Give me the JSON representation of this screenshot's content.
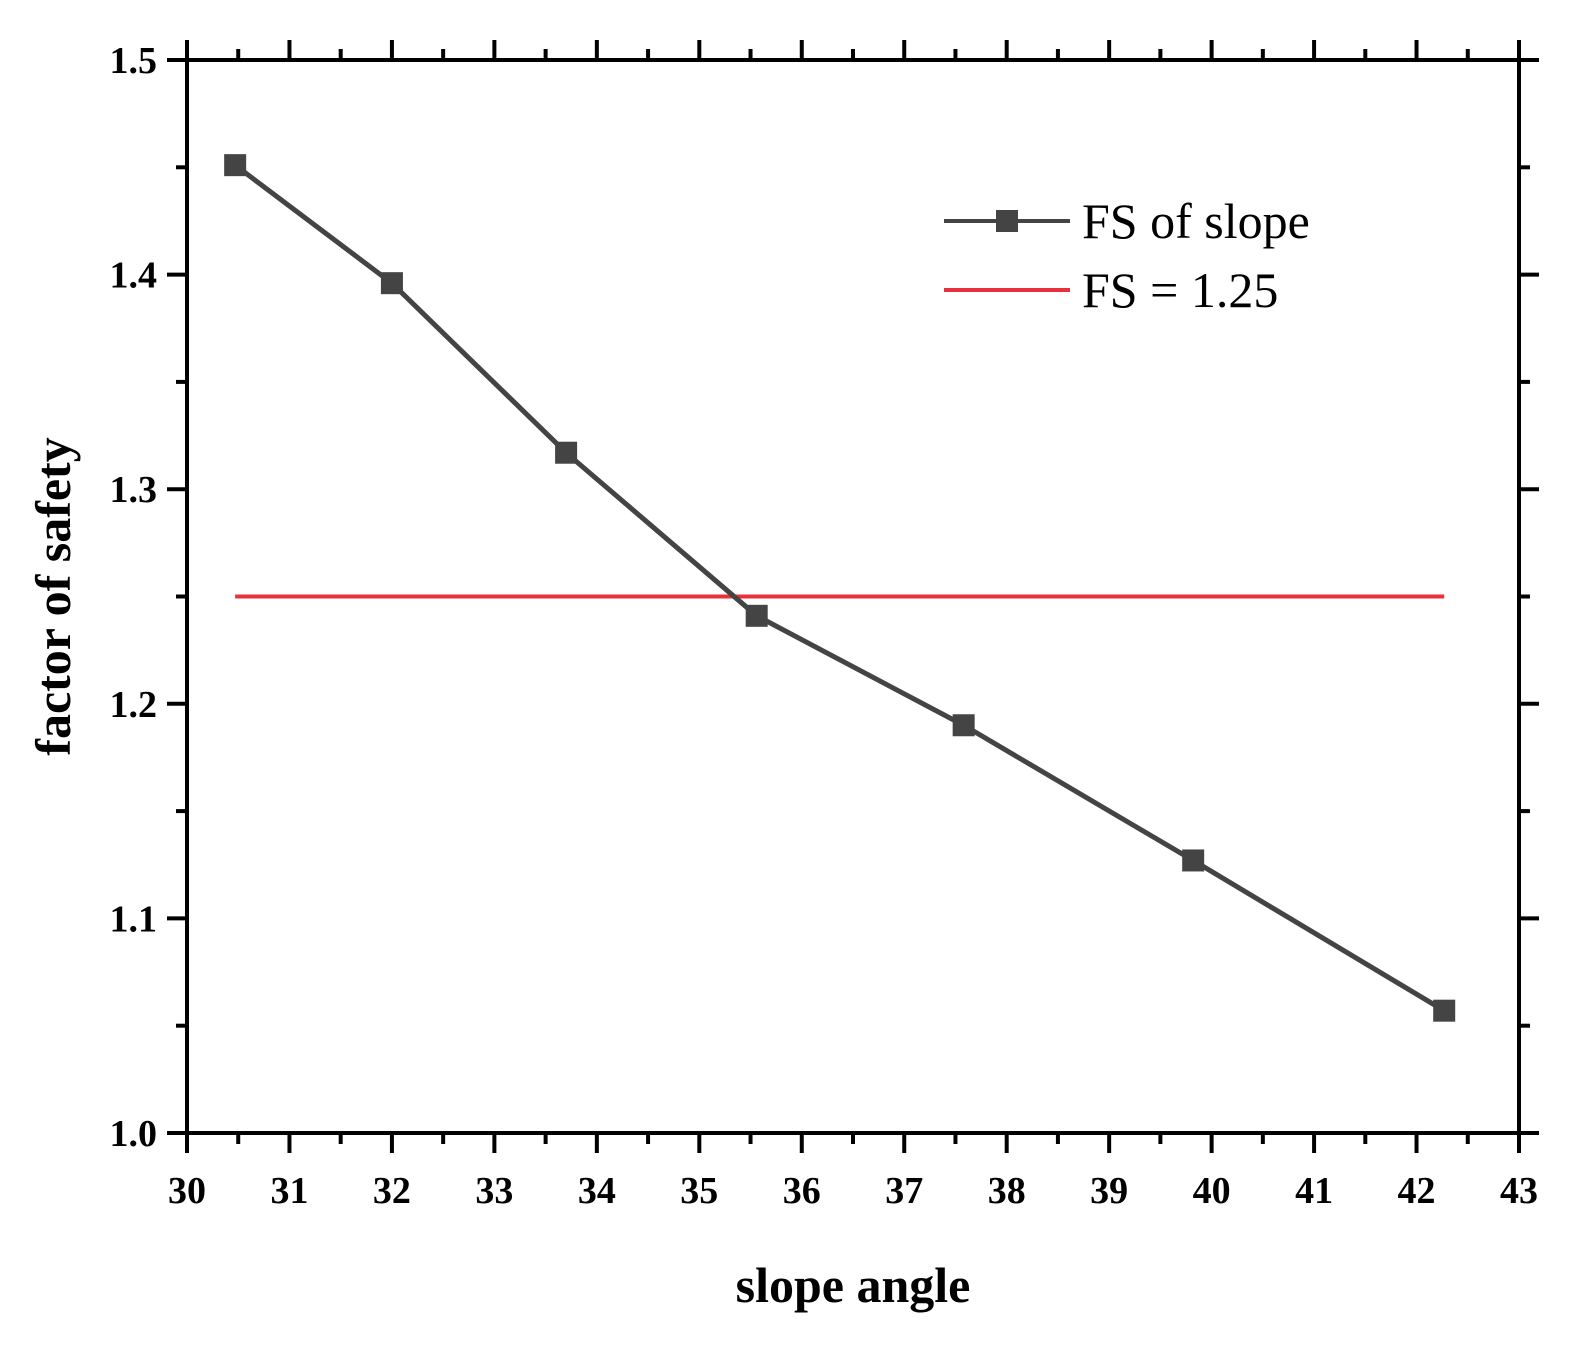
{
  "chart_data": {
    "type": "line",
    "xlabel": "slope angle",
    "ylabel": "factor of safety",
    "xlim": [
      30,
      43
    ],
    "ylim": [
      1.0,
      1.5
    ],
    "x_ticks": [
      "30",
      "31",
      "32",
      "33",
      "34",
      "35",
      "36",
      "37",
      "38",
      "39",
      "40",
      "41",
      "42",
      "43"
    ],
    "y_ticks": [
      "1.0",
      "1.1",
      "1.2",
      "1.3",
      "1.4",
      "1.5"
    ],
    "grid": false,
    "legend_position": "top-right",
    "series": [
      {
        "name": "FS of slope",
        "color": "#444444",
        "marker": "square",
        "x": [
          30.47,
          32.0,
          33.7,
          35.56,
          37.58,
          39.82,
          42.27
        ],
        "y": [
          1.451,
          1.396,
          1.317,
          1.241,
          1.19,
          1.127,
          1.057
        ]
      },
      {
        "name": "FS = 1.25",
        "color": "#e8313a",
        "marker": "none",
        "x": [
          30.47,
          42.27
        ],
        "y": [
          1.25,
          1.25
        ]
      }
    ]
  }
}
